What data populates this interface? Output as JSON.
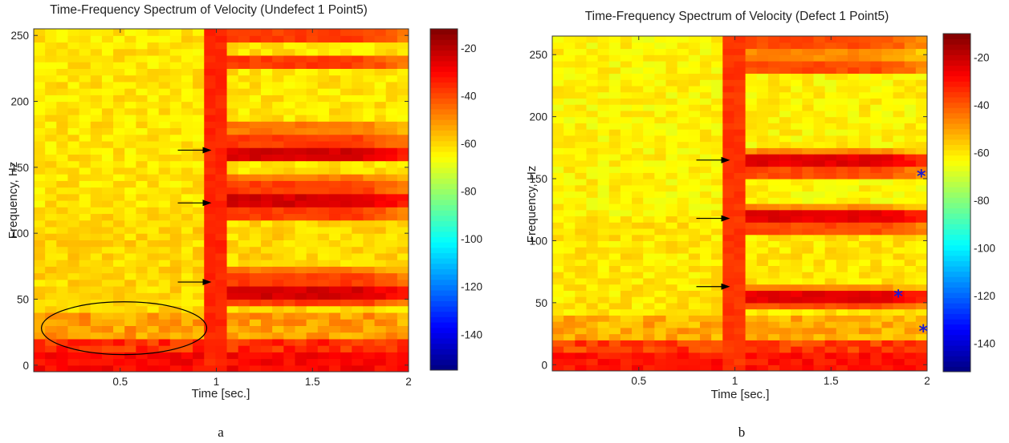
{
  "panels": [
    {
      "id": "a",
      "panel_label": "a",
      "chart_data": {
        "type": "heatmap",
        "title": "Time-Frequency Spectrum of Velocity (Undefect 1 Point5)",
        "xlabel": "Time [sec.]",
        "ylabel": "Frequency, Hz",
        "xlim": [
          0.05,
          2.0
        ],
        "ylim": [
          -5,
          255
        ],
        "xticks": [
          0.5,
          1,
          1.5,
          2
        ],
        "yticks": [
          0,
          50,
          100,
          150,
          200,
          250
        ],
        "colorbar": {
          "range": [
            -155,
            -12
          ],
          "ticks": [
            -20,
            -40,
            -60,
            -80,
            -100,
            -120,
            -140
          ]
        },
        "event_time": 1.0,
        "bands": [
          {
            "f0": 245,
            "f1": 255,
            "level": "strong"
          },
          {
            "f0": 225,
            "f1": 235,
            "level": "strong"
          },
          {
            "f0": 175,
            "f1": 185,
            "level": "medium"
          },
          {
            "f0": 165,
            "f1": 175,
            "level": "strong"
          },
          {
            "f0": 155,
            "f1": 165,
            "level": "peak"
          },
          {
            "f0": 140,
            "f1": 145,
            "level": "medium"
          },
          {
            "f0": 130,
            "f1": 140,
            "level": "strong"
          },
          {
            "f0": 120,
            "f1": 130,
            "level": "peak"
          },
          {
            "f0": 110,
            "f1": 120,
            "level": "strong"
          },
          {
            "f0": 70,
            "f1": 75,
            "level": "medium"
          },
          {
            "f0": 60,
            "f1": 70,
            "level": "strong"
          },
          {
            "f0": 50,
            "f1": 60,
            "level": "peak"
          },
          {
            "f0": 45,
            "f1": 50,
            "level": "strong"
          }
        ],
        "arrows": [
          {
            "t": 1.0,
            "f": 163
          },
          {
            "t": 1.0,
            "f": 123
          },
          {
            "t": 1.0,
            "f": 63
          }
        ],
        "stars": [],
        "ellipse": {
          "t_center": 0.52,
          "f_center": 28,
          "t_half": 0.43,
          "f_half": 20
        }
      }
    },
    {
      "id": "b",
      "panel_label": "b",
      "chart_data": {
        "type": "heatmap",
        "title": "Time-Frequency Spectrum of Velocity (Defect 1 Point5)",
        "xlabel": "Time [sec.]",
        "ylabel": "Frequency, Hz",
        "xlim": [
          0.05,
          2.0
        ],
        "ylim": [
          -5,
          265
        ],
        "xticks": [
          0.5,
          1,
          1.5,
          2
        ],
        "yticks": [
          0,
          50,
          100,
          150,
          200,
          250
        ],
        "colorbar": {
          "range": [
            -152,
            -10
          ],
          "ticks": [
            -20,
            -40,
            -60,
            -80,
            -100,
            -120,
            -140
          ]
        },
        "event_time": 1.0,
        "bands": [
          {
            "f0": 255,
            "f1": 265,
            "level": "strong"
          },
          {
            "f0": 245,
            "f1": 255,
            "level": "medium"
          },
          {
            "f0": 235,
            "f1": 245,
            "level": "strong"
          },
          {
            "f0": 170,
            "f1": 175,
            "level": "medium"
          },
          {
            "f0": 160,
            "f1": 170,
            "level": "peak"
          },
          {
            "f0": 150,
            "f1": 160,
            "level": "strong"
          },
          {
            "f0": 125,
            "f1": 130,
            "level": "medium"
          },
          {
            "f0": 115,
            "f1": 125,
            "level": "peak"
          },
          {
            "f0": 105,
            "f1": 115,
            "level": "strong"
          },
          {
            "f0": 60,
            "f1": 65,
            "level": "medium"
          },
          {
            "f0": 50,
            "f1": 60,
            "level": "peak"
          },
          {
            "f0": 45,
            "f1": 50,
            "level": "strong"
          }
        ],
        "arrows": [
          {
            "t": 1.0,
            "f": 165
          },
          {
            "t": 1.0,
            "f": 118
          },
          {
            "t": 1.0,
            "f": 63
          }
        ],
        "stars": [
          {
            "t": 1.97,
            "f": 153
          },
          {
            "t": 1.85,
            "f": 56
          },
          {
            "t": 1.98,
            "f": 28
          }
        ],
        "ellipse": null
      }
    }
  ],
  "colors": {
    "star": "#1a1ad0",
    "arrow": "#000000"
  }
}
